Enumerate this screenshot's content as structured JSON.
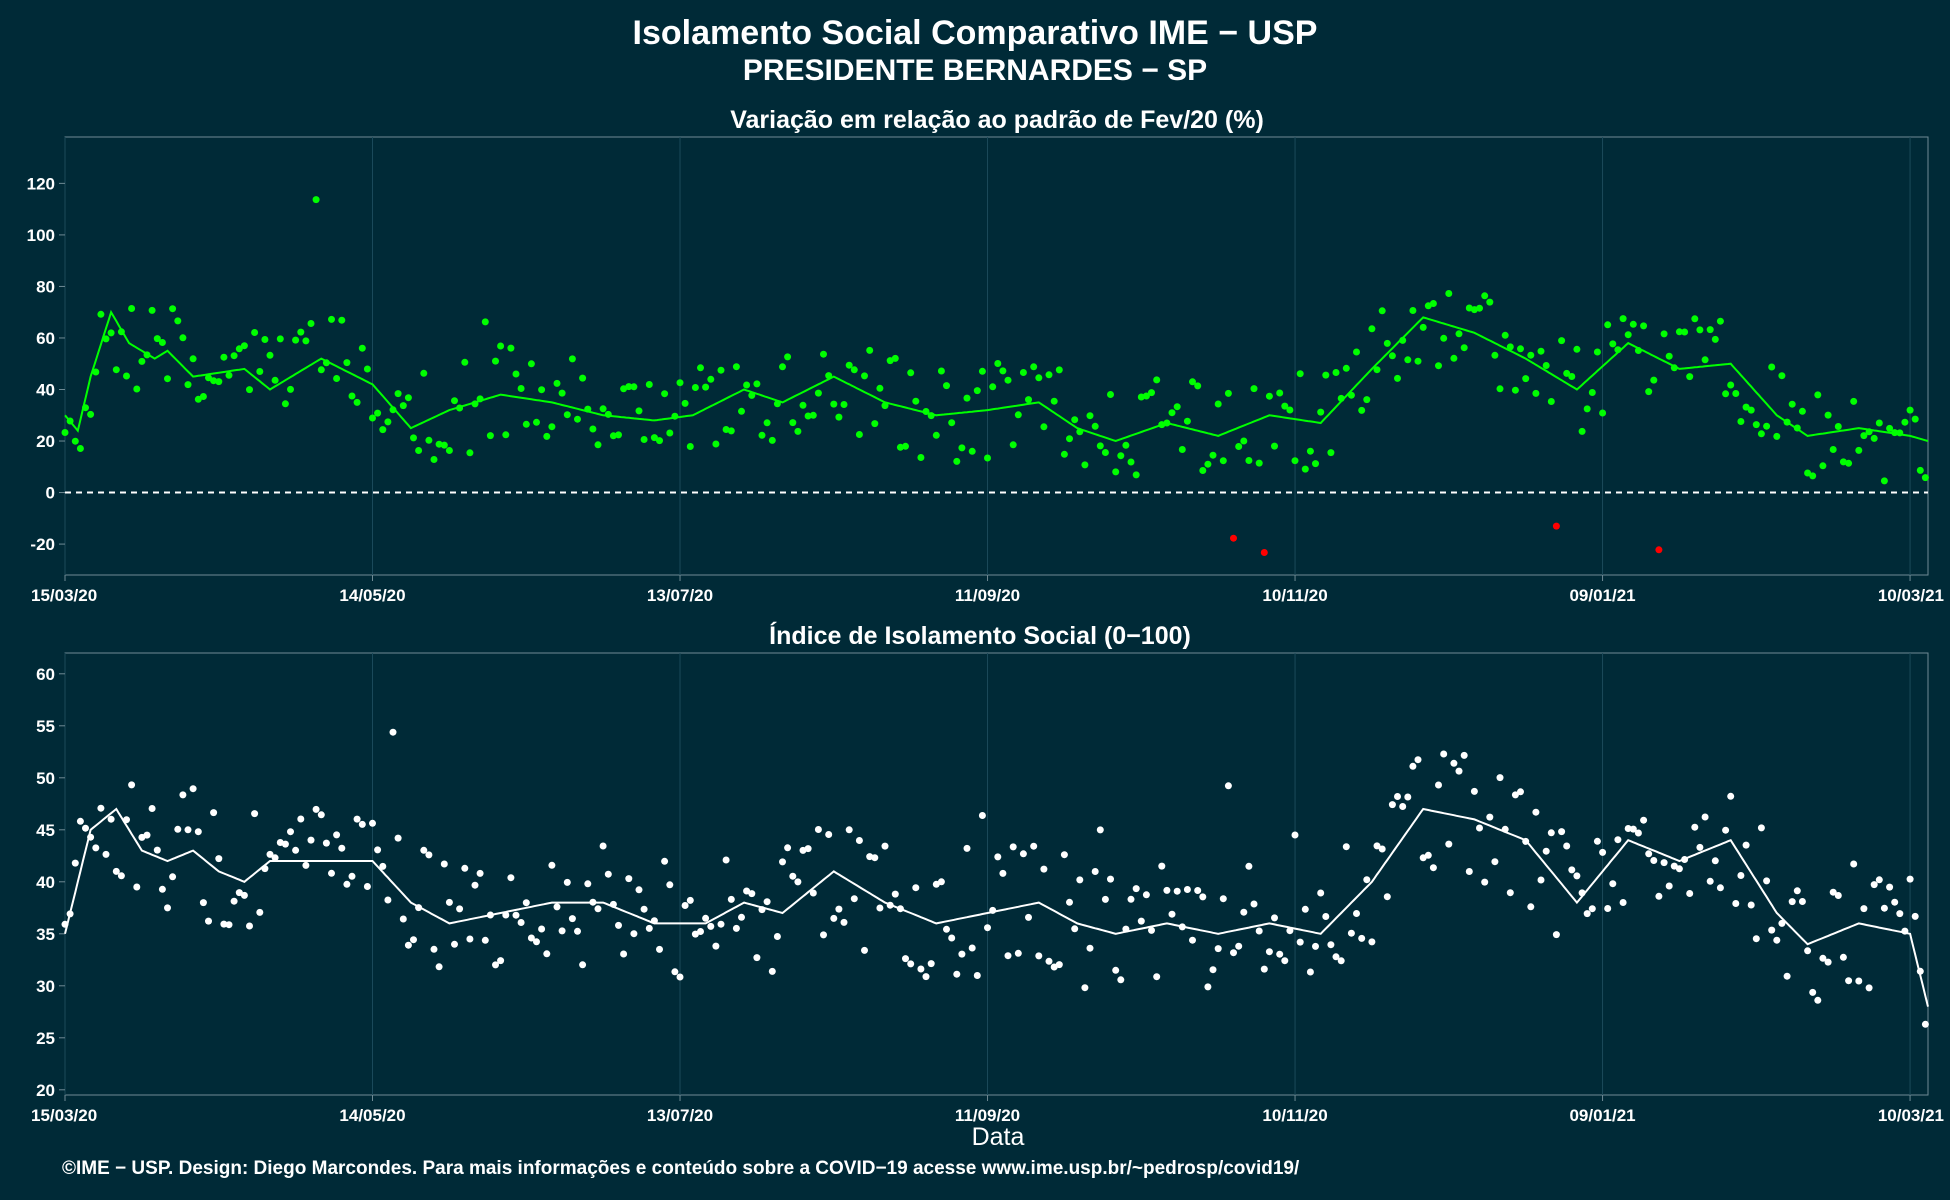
{
  "header": {
    "title_line1": "Isolamento Social Comparativo IME − USP",
    "title_line2": "PRESIDENTE BERNARDES − SP"
  },
  "caption": "©IME − USP. Design: Diego Marcondes. Para mais informações e conteúdo sobre a COVID−19 acesse www.ime.usp.br/~pedrosp/covid19/",
  "colors": {
    "background": "#002a37",
    "panel_border": "#6f8a94",
    "grid": "#1b4a5a",
    "positive_points": "#00ff00",
    "negative_points": "#ff0000",
    "index_points": "#ffffff",
    "zero_line": "#ffffff"
  },
  "chart_data": [
    {
      "type": "scatter",
      "title": "Variação em relação ao padrão de Fev/20 (%)",
      "xlabel": "",
      "ylabel": "",
      "x_ticks": [
        "15/03/20",
        "14/05/20",
        "13/07/20",
        "11/09/20",
        "10/11/20",
        "09/01/21",
        "10/03/21"
      ],
      "y_ticks": [
        -20,
        0,
        20,
        40,
        60,
        80,
        100,
        120
      ],
      "xlim": [
        "15/03/20",
        "15/03/21"
      ],
      "ylim": [
        -32,
        138
      ],
      "reference_line": {
        "y": 0,
        "style": "dashed"
      },
      "grid": true,
      "series_keyframes_smoothed": [
        [
          0,
          30
        ],
        [
          5,
          24
        ],
        [
          10,
          45
        ],
        [
          18,
          70
        ],
        [
          25,
          58
        ],
        [
          35,
          52
        ],
        [
          40,
          55
        ],
        [
          50,
          45
        ],
        [
          70,
          48
        ],
        [
          80,
          40
        ],
        [
          100,
          52
        ],
        [
          120,
          42
        ],
        [
          135,
          25
        ],
        [
          150,
          32
        ],
        [
          170,
          38
        ],
        [
          190,
          35
        ],
        [
          210,
          30
        ],
        [
          230,
          28
        ],
        [
          245,
          30
        ],
        [
          265,
          40
        ],
        [
          280,
          35
        ],
        [
          300,
          45
        ],
        [
          320,
          35
        ],
        [
          340,
          30
        ],
        [
          360,
          32
        ],
        [
          380,
          35
        ],
        [
          395,
          25
        ],
        [
          410,
          20
        ],
        [
          430,
          27
        ],
        [
          450,
          22
        ],
        [
          470,
          30
        ],
        [
          490,
          27
        ],
        [
          510,
          48
        ],
        [
          530,
          68
        ],
        [
          550,
          62
        ],
        [
          570,
          52
        ],
        [
          590,
          40
        ],
        [
          610,
          58
        ],
        [
          630,
          48
        ],
        [
          650,
          50
        ],
        [
          668,
          30
        ],
        [
          680,
          22
        ],
        [
          700,
          25
        ],
        [
          720,
          22
        ],
        [
          727,
          20
        ]
      ]
    },
    {
      "type": "scatter",
      "title": "Índice de Isolamento Social (0−100)",
      "xlabel": "Data",
      "ylabel": "",
      "x_ticks": [
        "15/03/20",
        "14/05/20",
        "13/07/20",
        "11/09/20",
        "10/11/20",
        "09/01/21",
        "10/03/21"
      ],
      "y_ticks": [
        20,
        25,
        30,
        35,
        40,
        45,
        50,
        55,
        60
      ],
      "xlim": [
        "15/03/20",
        "15/03/21"
      ],
      "ylim": [
        19.5,
        62
      ],
      "grid": true,
      "series_keyframes_smoothed": [
        [
          0,
          35
        ],
        [
          10,
          45
        ],
        [
          20,
          47
        ],
        [
          30,
          43
        ],
        [
          40,
          42
        ],
        [
          50,
          43
        ],
        [
          60,
          41
        ],
        [
          70,
          40
        ],
        [
          80,
          42
        ],
        [
          100,
          42
        ],
        [
          120,
          42
        ],
        [
          135,
          38
        ],
        [
          150,
          36
        ],
        [
          170,
          37
        ],
        [
          190,
          38
        ],
        [
          210,
          38
        ],
        [
          230,
          36
        ],
        [
          250,
          36
        ],
        [
          265,
          38
        ],
        [
          280,
          37
        ],
        [
          300,
          41
        ],
        [
          320,
          38
        ],
        [
          340,
          36
        ],
        [
          360,
          37
        ],
        [
          380,
          38
        ],
        [
          395,
          36
        ],
        [
          410,
          35
        ],
        [
          430,
          36
        ],
        [
          450,
          35
        ],
        [
          470,
          36
        ],
        [
          490,
          35
        ],
        [
          510,
          40
        ],
        [
          530,
          47
        ],
        [
          550,
          46
        ],
        [
          570,
          44
        ],
        [
          590,
          38
        ],
        [
          610,
          44
        ],
        [
          630,
          42
        ],
        [
          650,
          44
        ],
        [
          668,
          37
        ],
        [
          680,
          34
        ],
        [
          700,
          36
        ],
        [
          720,
          35
        ],
        [
          727,
          28
        ]
      ]
    }
  ]
}
